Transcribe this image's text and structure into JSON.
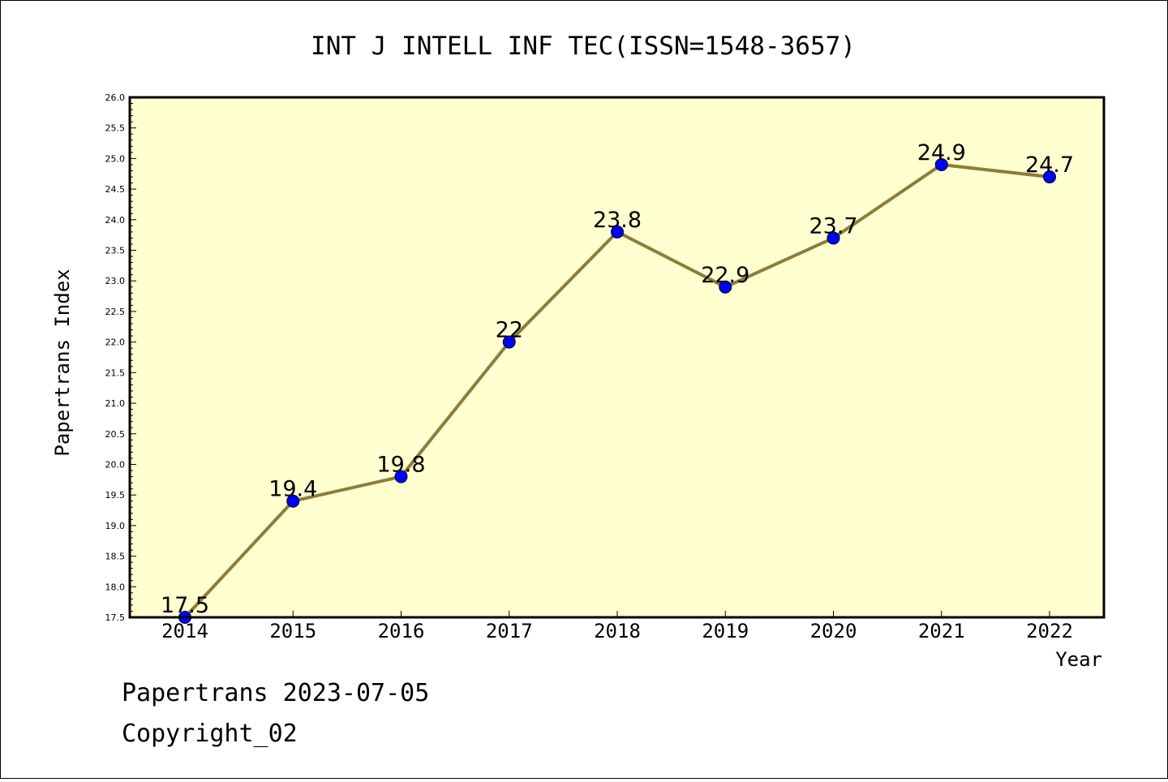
{
  "chart_data": {
    "type": "line",
    "title": "INT J INTELL INF TEC(ISSN=1548-3657)",
    "xlabel": "Year",
    "ylabel": "Papertrans Index",
    "categories": [
      "2014",
      "2015",
      "2016",
      "2017",
      "2018",
      "2019",
      "2020",
      "2021",
      "2022"
    ],
    "values": [
      17.5,
      19.4,
      19.8,
      22,
      23.8,
      22.9,
      23.7,
      24.9,
      24.7
    ],
    "data_labels": [
      "17.5",
      "19.4",
      "19.8",
      "22",
      "23.8",
      "22.9",
      "23.7",
      "24.9",
      "24.7"
    ],
    "ylim": [
      17.5,
      26.0
    ],
    "yticks": [
      "17.5",
      "18.0",
      "18.5",
      "19.0",
      "19.5",
      "20.0",
      "20.5",
      "21.0",
      "21.5",
      "22.0",
      "22.5",
      "23.0",
      "23.5",
      "24.0",
      "24.5",
      "25.0",
      "25.5",
      "26.0"
    ],
    "grid": false,
    "colors": {
      "plot_background": "#ffffd0",
      "line": "#8b7d3a",
      "marker": "#0000ff"
    }
  },
  "footer": {
    "source": "Papertrans 2023-07-05",
    "copyright": "Copyright_02"
  }
}
